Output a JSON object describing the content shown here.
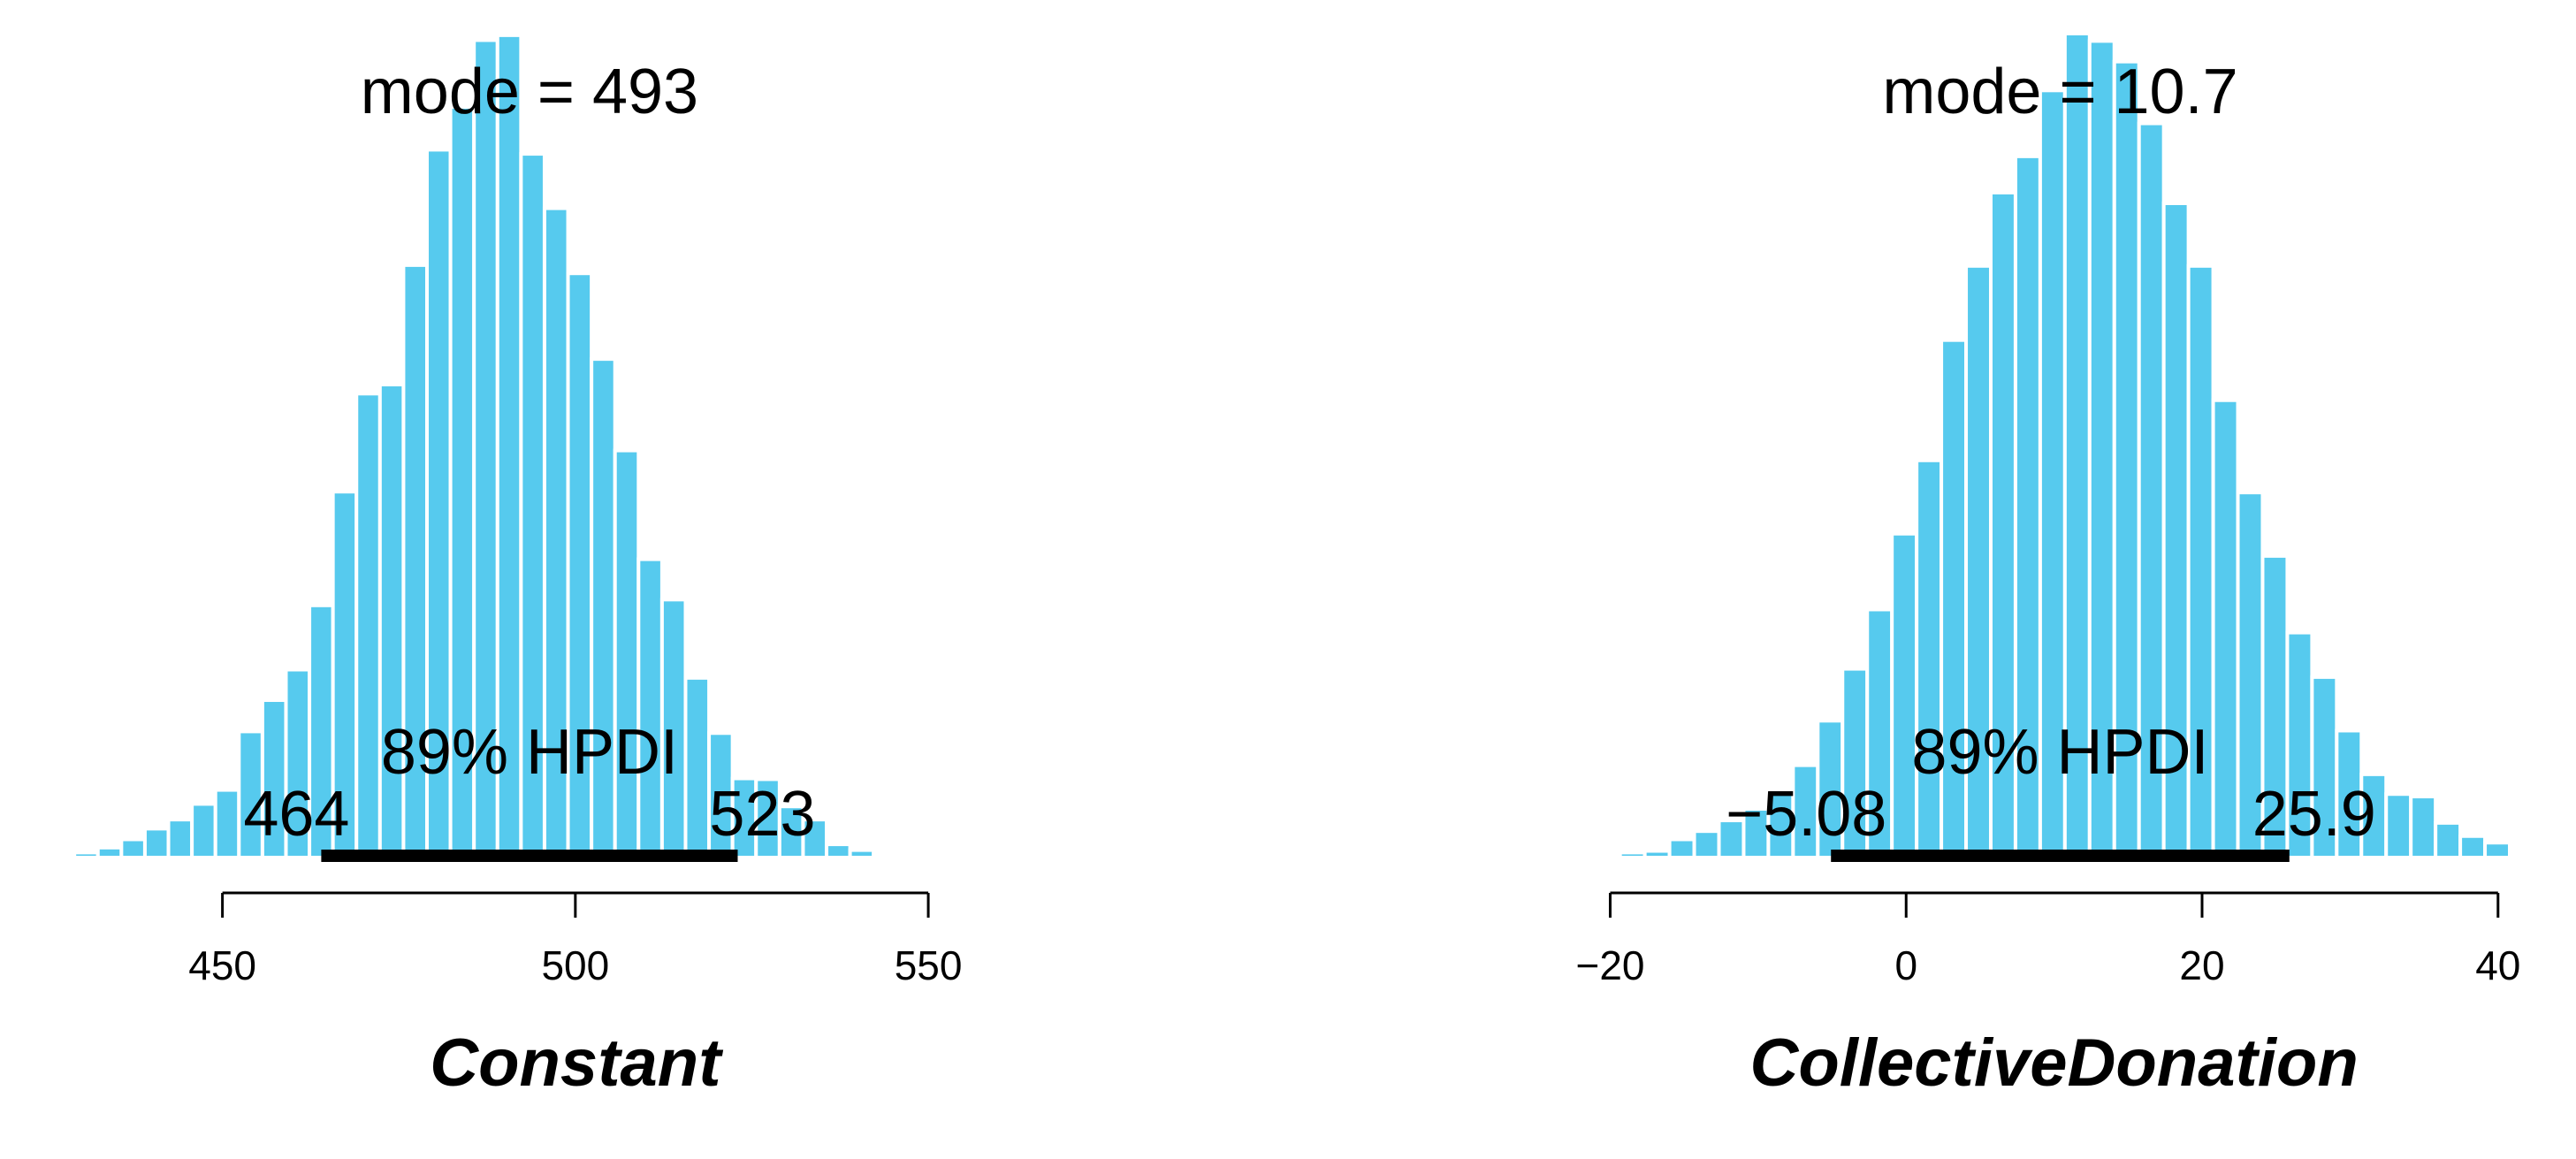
{
  "colors": {
    "bar": "#56CAEE",
    "bar_edge": "#ffffff",
    "hpdi_line": "#000000",
    "axis": "#000000"
  },
  "chart_data": [
    {
      "type": "bar",
      "xlabel": "Constant",
      "mode_label": "mode = 493",
      "hpdi_label": "89% HPDI",
      "hpdi_low": 464,
      "hpdi_low_label": "464",
      "hpdi_high": 523,
      "hpdi_high_label": "523",
      "xlim": [
        425,
        555
      ],
      "ylim": [
        0,
        1
      ],
      "ticks": [
        450,
        500,
        550
      ],
      "tick_labels": [
        "450",
        "500",
        "550"
      ],
      "bin_start": 425.7,
      "bin_width": 3.33,
      "values": [
        0.004,
        0.006,
        0.012,
        0.022,
        0.035,
        0.046,
        0.065,
        0.082,
        0.153,
        0.191,
        0.228,
        0.306,
        0.444,
        0.563,
        0.574,
        0.719,
        0.859,
        0.911,
        0.992,
        0.998,
        0.854,
        0.788,
        0.709,
        0.605,
        0.494,
        0.362,
        0.313,
        0.218,
        0.151,
        0.096,
        0.095,
        0.062,
        0.046,
        0.016,
        0.009,
        0.004
      ]
    },
    {
      "type": "bar",
      "xlabel": "CollectiveDonation",
      "mode_label": "mode = 10.7",
      "hpdi_label": "89% HPDI",
      "hpdi_low": -5.08,
      "hpdi_low_label": "−5.08",
      "hpdi_high": 25.9,
      "hpdi_high_label": "25.9",
      "xlim": [
        -22,
        43
      ],
      "ylim": [
        0,
        1
      ],
      "ticks": [
        -20,
        0,
        20,
        40
      ],
      "tick_labels": [
        "−20",
        "0",
        "20",
        "40"
      ],
      "bin_start": -21.0,
      "bin_width": 1.67,
      "values": [
        0.004,
        0.006,
        0.008,
        0.022,
        0.032,
        0.045,
        0.059,
        0.078,
        0.112,
        0.166,
        0.229,
        0.301,
        0.393,
        0.482,
        0.628,
        0.718,
        0.807,
        0.851,
        0.931,
        1.0,
        0.991,
        0.966,
        0.891,
        0.794,
        0.718,
        0.555,
        0.443,
        0.366,
        0.273,
        0.219,
        0.154,
        0.101,
        0.077,
        0.074,
        0.042,
        0.026,
        0.018,
        0.004,
        0.004,
        0.003
      ]
    }
  ]
}
